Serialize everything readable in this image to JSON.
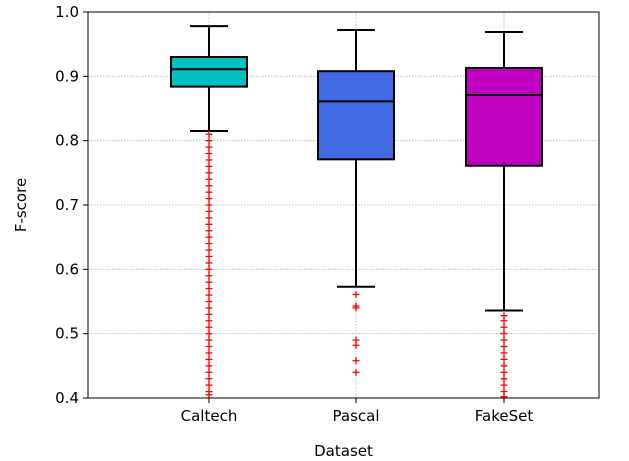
{
  "chart_data": {
    "type": "box",
    "xlabel": "Dataset",
    "ylabel": "F-score",
    "ylim": [
      0.4,
      1.0
    ],
    "yticks": [
      0.4,
      0.5,
      0.6,
      0.7,
      0.8,
      0.9,
      1.0
    ],
    "ytick_labels": [
      "0.4",
      "0.5",
      "0.6",
      "0.7",
      "0.8",
      "0.9",
      "1.0"
    ],
    "grid": true,
    "outlier_marker": "+",
    "outlier_color": "#ff0000",
    "categories": [
      "Caltech",
      "Pascal",
      "FakeSet"
    ],
    "boxes": [
      {
        "label": "Caltech",
        "color": "#00c0c0",
        "whisker_low": 0.815,
        "q1": 0.884,
        "median": 0.911,
        "q3": 0.93,
        "whisker_high": 0.978,
        "outliers": [
          0.81,
          0.8,
          0.79,
          0.78,
          0.77,
          0.76,
          0.75,
          0.74,
          0.73,
          0.72,
          0.71,
          0.7,
          0.69,
          0.68,
          0.67,
          0.66,
          0.65,
          0.64,
          0.63,
          0.62,
          0.61,
          0.6,
          0.59,
          0.58,
          0.57,
          0.56,
          0.55,
          0.54,
          0.53,
          0.52,
          0.51,
          0.5,
          0.49,
          0.48,
          0.47,
          0.46,
          0.45,
          0.44,
          0.43,
          0.42,
          0.41,
          0.405
        ]
      },
      {
        "label": "Pascal",
        "color": "#4169e1",
        "whisker_low": 0.573,
        "q1": 0.771,
        "median": 0.861,
        "q3": 0.908,
        "whisker_high": 0.972,
        "outliers": [
          0.561,
          0.543,
          0.54,
          0.49,
          0.482,
          0.458,
          0.44
        ]
      },
      {
        "label": "FakeSet",
        "color": "#c000c0",
        "whisker_low": 0.536,
        "q1": 0.761,
        "median": 0.871,
        "q3": 0.913,
        "whisker_high": 0.969,
        "outliers": [
          0.528,
          0.52,
          0.51,
          0.5,
          0.49,
          0.48,
          0.47,
          0.46,
          0.45,
          0.44,
          0.43,
          0.42,
          0.41,
          0.402
        ]
      }
    ]
  }
}
